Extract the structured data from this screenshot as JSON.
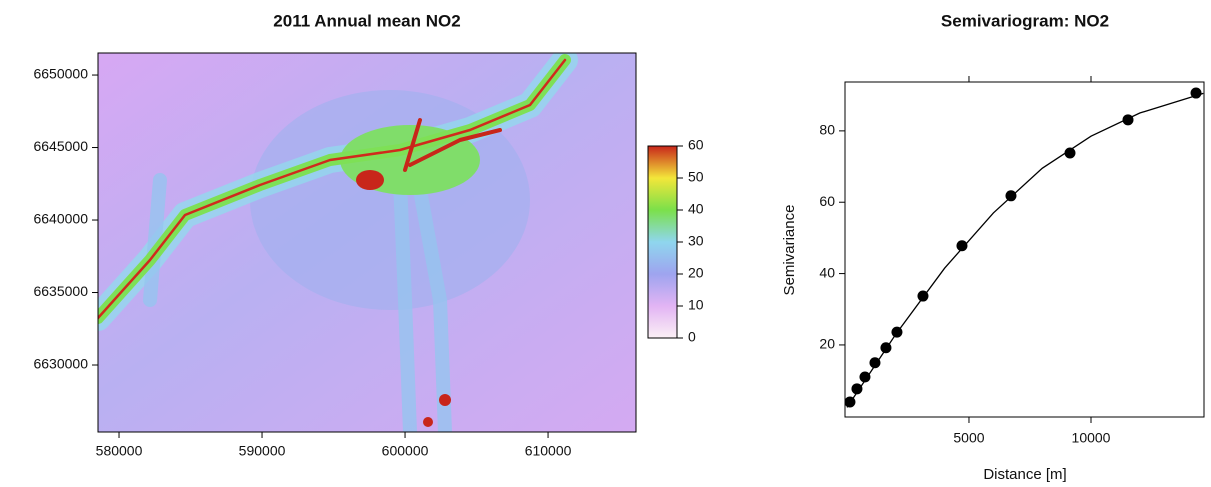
{
  "chart_data": [
    {
      "type": "raster",
      "title": "2011 Annual mean NO2",
      "xlim": [
        578530,
        616150
      ],
      "ylim": [
        6625380,
        6651520
      ],
      "xticks": [
        580000,
        590000,
        600000,
        610000
      ],
      "yticks": [
        6630000,
        6635000,
        6640000,
        6645000,
        6650000
      ],
      "colorbar": {
        "lim": [
          0,
          60
        ],
        "ticks": [
          0,
          10,
          20,
          30,
          40,
          50,
          60
        ],
        "colors": [
          "#fbf0f5",
          "#e2b4f4",
          "#9ea4ef",
          "#8fd6ee",
          "#7be04a",
          "#f3e63a",
          "#c8261a"
        ]
      }
    },
    {
      "type": "scatter",
      "title": "Semivariogram: NO2",
      "x_label": "Distance [m]",
      "y_label": "Semivariance",
      "x": [
        123,
        410,
        738,
        1148,
        1598,
        2049,
        3115,
        4713,
        6721,
        9139,
        11516,
        14303
      ],
      "values": [
        4.0,
        7.7,
        11.0,
        15.0,
        19.2,
        23.6,
        33.7,
        47.8,
        61.8,
        73.8,
        83.1,
        90.6
      ],
      "fit": {
        "x": [
          0,
          2000,
          4000,
          6000,
          8000,
          10000,
          12000,
          14600
        ],
        "values": [
          2.5,
          23,
          41.5,
          57,
          69.5,
          78.5,
          85,
          90.5
        ]
      },
      "color": "#000000",
      "xlim": [
        -80,
        14630
      ],
      "ylim": [
        -0.2,
        93.7
      ],
      "xticks": [
        5000,
        10000
      ],
      "yticks": [
        20,
        40,
        60,
        80
      ]
    }
  ]
}
